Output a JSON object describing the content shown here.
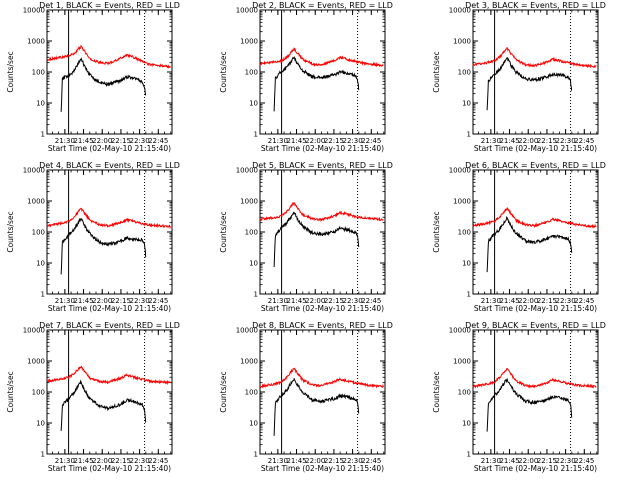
{
  "chart_data": [
    {
      "type": "line",
      "title": "Det 1, BLACK = Events, RED = LLD",
      "xlabel": "Start Time (02-May-10 21:15:40)",
      "ylabel": "Counts/sec",
      "xticks": [
        "21:30",
        "21:45",
        "22:00",
        "22:15",
        "22:30",
        "22:45"
      ],
      "yticks": [
        "1",
        "10",
        "100",
        "1000",
        "10000"
      ],
      "yscale": "log",
      "ylim": [
        1,
        10000
      ],
      "xlim": [
        "21:15:40",
        "22:56"
      ],
      "vlines": [
        "21:33",
        "22:34"
      ],
      "vlines_style": [
        "solid",
        "dotted"
      ],
      "series": [
        {
          "color": "#ff0000",
          "key": [
            "21:15:40",
            "21:27",
            "21:33",
            "21:38",
            "21:41",
            "21:43",
            "21:46",
            "21:50",
            "21:58",
            "22:05",
            "22:15",
            "22:20",
            "22:25",
            "22:32",
            "22:37",
            "22:45",
            "22:55"
          ],
          "values": [
            250,
            300,
            330,
            400,
            560,
            650,
            460,
            260,
            200,
            190,
            280,
            360,
            300,
            220,
            180,
            160,
            150
          ]
        },
        {
          "color": "#000000",
          "key": [
            "21:27",
            "21:28",
            "21:31",
            "21:33",
            "21:37",
            "21:41",
            "21:43",
            "21:46",
            "21:50",
            "21:58",
            "22:05",
            "22:15",
            "22:20",
            "22:25",
            "22:32",
            "22:34",
            "22:35"
          ],
          "values": [
            5,
            60,
            70,
            80,
            100,
            200,
            270,
            150,
            80,
            45,
            40,
            55,
            70,
            65,
            50,
            30,
            15
          ]
        }
      ]
    },
    {
      "type": "line",
      "title": "Det 2, BLACK = Events, RED = LLD",
      "xlabel": "Start Time (02-May-10 21:15:40)",
      "ylabel": "Counts/sec",
      "xticks": [
        "21:30",
        "21:45",
        "22:00",
        "22:15",
        "22:30",
        "22:45"
      ],
      "yticks": [
        "1",
        "10",
        "100",
        "1000",
        "10000"
      ],
      "yscale": "log",
      "ylim": [
        1,
        10000
      ],
      "xlim": [
        "21:15:40",
        "22:56"
      ],
      "vlines": [
        "21:33",
        "22:34"
      ],
      "vlines_style": [
        "solid",
        "dotted"
      ],
      "series": [
        {
          "color": "#ff0000",
          "key": [
            "21:15:40",
            "21:27",
            "21:33",
            "21:38",
            "21:41",
            "21:43",
            "21:46",
            "21:50",
            "21:58",
            "22:05",
            "22:15",
            "22:20",
            "22:25",
            "22:32",
            "22:37",
            "22:45",
            "22:55"
          ],
          "values": [
            180,
            210,
            230,
            320,
            450,
            550,
            400,
            260,
            180,
            170,
            230,
            300,
            260,
            220,
            200,
            180,
            160
          ]
        },
        {
          "color": "#000000",
          "key": [
            "21:27",
            "21:28",
            "21:31",
            "21:33",
            "21:37",
            "21:41",
            "21:43",
            "21:46",
            "21:50",
            "21:58",
            "22:05",
            "22:15",
            "22:20",
            "22:25",
            "22:32",
            "22:34",
            "22:35"
          ],
          "values": [
            6,
            60,
            90,
            100,
            140,
            230,
            300,
            180,
            110,
            70,
            65,
            80,
            100,
            90,
            80,
            60,
            25
          ]
        }
      ]
    },
    {
      "type": "line",
      "title": "Det 3, BLACK = Events, RED = LLD",
      "xlabel": "Start Time (02-May-10 21:15:40)",
      "ylabel": "Counts/sec",
      "xticks": [
        "21:30",
        "21:45",
        "22:00",
        "22:15",
        "22:30",
        "22:45"
      ],
      "yticks": [
        "1",
        "10",
        "100",
        "1000",
        "10000"
      ],
      "yscale": "log",
      "ylim": [
        1,
        10000
      ],
      "xlim": [
        "21:15:40",
        "22:56"
      ],
      "vlines": [
        "21:33",
        "22:34"
      ],
      "vlines_style": [
        "solid",
        "dotted"
      ],
      "series": [
        {
          "color": "#ff0000",
          "key": [
            "21:15:40",
            "21:27",
            "21:33",
            "21:38",
            "21:41",
            "21:43",
            "21:46",
            "21:50",
            "21:58",
            "22:05",
            "22:15",
            "22:20",
            "22:25",
            "22:32",
            "22:37",
            "22:45",
            "22:55"
          ],
          "values": [
            170,
            200,
            230,
            330,
            470,
            580,
            400,
            250,
            170,
            160,
            210,
            260,
            230,
            200,
            180,
            160,
            150
          ]
        },
        {
          "color": "#000000",
          "key": [
            "21:27",
            "21:28",
            "21:31",
            "21:33",
            "21:37",
            "21:41",
            "21:43",
            "21:46",
            "21:50",
            "21:58",
            "22:05",
            "22:15",
            "22:20",
            "22:25",
            "22:32",
            "22:34",
            "22:35"
          ],
          "values": [
            6,
            50,
            70,
            85,
            120,
            220,
            290,
            170,
            100,
            60,
            55,
            70,
            85,
            80,
            70,
            50,
            22
          ]
        }
      ]
    },
    {
      "type": "line",
      "title": "Det 4, BLACK = Events, RED = LLD",
      "xlabel": "Start Time (02-May-10 21:15:40)",
      "ylabel": "Counts/sec",
      "xticks": [
        "21:30",
        "21:45",
        "22:00",
        "22:15",
        "22:30",
        "22:45"
      ],
      "yticks": [
        "1",
        "10",
        "100",
        "1000",
        "10000"
      ],
      "yscale": "log",
      "ylim": [
        1,
        10000
      ],
      "xlim": [
        "21:15:40",
        "22:56"
      ],
      "vlines": [
        "21:33",
        "22:34"
      ],
      "vlines_style": [
        "solid",
        "dotted"
      ],
      "series": [
        {
          "color": "#ff0000",
          "key": [
            "21:15:40",
            "21:27",
            "21:33",
            "21:38",
            "21:41",
            "21:43",
            "21:46",
            "21:50",
            "21:58",
            "22:05",
            "22:15",
            "22:20",
            "22:25",
            "22:32",
            "22:37",
            "22:45",
            "22:55"
          ],
          "values": [
            160,
            190,
            220,
            320,
            460,
            560,
            400,
            240,
            170,
            160,
            200,
            250,
            220,
            190,
            170,
            160,
            150
          ]
        },
        {
          "color": "#000000",
          "key": [
            "21:27",
            "21:28",
            "21:31",
            "21:33",
            "21:37",
            "21:41",
            "21:43",
            "21:46",
            "21:50",
            "21:58",
            "22:05",
            "22:15",
            "22:20",
            "22:25",
            "22:32",
            "22:34",
            "22:35"
          ],
          "values": [
            4,
            45,
            65,
            80,
            110,
            210,
            270,
            150,
            90,
            45,
            40,
            50,
            65,
            60,
            55,
            40,
            15
          ]
        }
      ]
    },
    {
      "type": "line",
      "title": "Det 5, BLACK = Events, RED = LLD",
      "xlabel": "Start Time (02-May-10 21:15:40)",
      "ylabel": "Counts/sec",
      "xticks": [
        "21:30",
        "21:45",
        "22:00",
        "22:15",
        "22:30",
        "22:45"
      ],
      "yticks": [
        "1",
        "10",
        "100",
        "1000",
        "10000"
      ],
      "yscale": "log",
      "ylim": [
        1,
        10000
      ],
      "xlim": [
        "21:15:40",
        "22:56"
      ],
      "vlines": [
        "21:33",
        "22:34"
      ],
      "vlines_style": [
        "solid",
        "dotted"
      ],
      "series": [
        {
          "color": "#ff0000",
          "key": [
            "21:15:40",
            "21:27",
            "21:33",
            "21:38",
            "21:41",
            "21:43",
            "21:46",
            "21:50",
            "21:58",
            "22:05",
            "22:15",
            "22:20",
            "22:25",
            "22:32",
            "22:37",
            "22:45",
            "22:55"
          ],
          "values": [
            260,
            290,
            330,
            480,
            700,
            850,
            560,
            360,
            260,
            250,
            320,
            420,
            380,
            320,
            290,
            270,
            250
          ]
        },
        {
          "color": "#000000",
          "key": [
            "21:27",
            "21:28",
            "21:31",
            "21:33",
            "21:37",
            "21:41",
            "21:43",
            "21:46",
            "21:50",
            "21:58",
            "22:05",
            "22:15",
            "22:20",
            "22:25",
            "22:32",
            "22:34",
            "22:35"
          ],
          "values": [
            8,
            80,
            110,
            140,
            190,
            330,
            430,
            250,
            150,
            90,
            85,
            100,
            130,
            120,
            100,
            80,
            30
          ]
        }
      ]
    },
    {
      "type": "line",
      "title": "Det 6, BLACK = Events, RED = LLD",
      "xlabel": "Start Time (02-May-10 21:15:40)",
      "ylabel": "Counts/sec",
      "xticks": [
        "21:30",
        "21:45",
        "22:00",
        "22:15",
        "22:30",
        "22:45"
      ],
      "yticks": [
        "1",
        "10",
        "100",
        "1000",
        "10000"
      ],
      "yscale": "log",
      "ylim": [
        1,
        10000
      ],
      "xlim": [
        "21:15:40",
        "22:56"
      ],
      "vlines": [
        "21:33",
        "22:34"
      ],
      "vlines_style": [
        "solid",
        "dotted"
      ],
      "series": [
        {
          "color": "#ff0000",
          "key": [
            "21:15:40",
            "21:27",
            "21:33",
            "21:38",
            "21:41",
            "21:43",
            "21:46",
            "21:50",
            "21:58",
            "22:05",
            "22:15",
            "22:20",
            "22:25",
            "22:32",
            "22:37",
            "22:45",
            "22:55"
          ],
          "values": [
            160,
            190,
            220,
            330,
            480,
            580,
            400,
            240,
            170,
            160,
            210,
            260,
            230,
            200,
            180,
            160,
            150
          ]
        },
        {
          "color": "#000000",
          "key": [
            "21:27",
            "21:28",
            "21:31",
            "21:33",
            "21:37",
            "21:41",
            "21:43",
            "21:46",
            "21:50",
            "21:58",
            "22:05",
            "22:15",
            "22:20",
            "22:25",
            "22:32",
            "22:34",
            "22:35"
          ],
          "values": [
            5,
            50,
            70,
            85,
            120,
            220,
            290,
            160,
            95,
            50,
            45,
            60,
            75,
            70,
            60,
            45,
            18
          ]
        }
      ]
    },
    {
      "type": "line",
      "title": "Det 7, BLACK = Events, RED = LLD",
      "xlabel": "Start Time (02-May-10 21:15:40)",
      "ylabel": "Counts/sec",
      "xticks": [
        "21:30",
        "21:45",
        "22:00",
        "22:15",
        "22:30",
        "22:45"
      ],
      "yticks": [
        "1",
        "10",
        "100",
        "1000",
        "10000"
      ],
      "yscale": "log",
      "ylim": [
        1,
        10000
      ],
      "xlim": [
        "21:15:40",
        "22:56"
      ],
      "vlines": [
        "21:33",
        "22:34"
      ],
      "vlines_style": [
        "solid",
        "dotted"
      ],
      "series": [
        {
          "color": "#ff0000",
          "key": [
            "21:15:40",
            "21:27",
            "21:33",
            "21:38",
            "21:41",
            "21:43",
            "21:46",
            "21:50",
            "21:58",
            "22:05",
            "22:15",
            "22:20",
            "22:25",
            "22:32",
            "22:37",
            "22:45",
            "22:55"
          ],
          "values": [
            220,
            260,
            300,
            420,
            560,
            650,
            450,
            280,
            220,
            210,
            280,
            350,
            300,
            260,
            230,
            210,
            200
          ]
        },
        {
          "color": "#000000",
          "key": [
            "21:27",
            "21:28",
            "21:31",
            "21:33",
            "21:37",
            "21:41",
            "21:43",
            "21:46",
            "21:50",
            "21:58",
            "22:05",
            "22:15",
            "22:20",
            "22:25",
            "22:32",
            "22:34",
            "22:35"
          ],
          "values": [
            5,
            40,
            50,
            60,
            90,
            170,
            210,
            110,
            60,
            35,
            30,
            40,
            55,
            50,
            40,
            25,
            10
          ]
        }
      ]
    },
    {
      "type": "line",
      "title": "Det 8, BLACK = Events, RED = LLD",
      "xlabel": "Start Time (02-May-10 21:15:40)",
      "ylabel": "Counts/sec",
      "xticks": [
        "21:30",
        "21:45",
        "22:00",
        "22:15",
        "22:30",
        "22:45"
      ],
      "yticks": [
        "1",
        "10",
        "100",
        "1000",
        "10000"
      ],
      "yscale": "log",
      "ylim": [
        1,
        10000
      ],
      "xlim": [
        "21:15:40",
        "22:56"
      ],
      "vlines": [
        "21:33",
        "22:34"
      ],
      "vlines_style": [
        "solid",
        "dotted"
      ],
      "series": [
        {
          "color": "#ff0000",
          "key": [
            "21:15:40",
            "21:27",
            "21:33",
            "21:38",
            "21:41",
            "21:43",
            "21:46",
            "21:50",
            "21:58",
            "22:05",
            "22:15",
            "22:20",
            "22:25",
            "22:32",
            "22:37",
            "22:45",
            "22:55"
          ],
          "values": [
            150,
            180,
            210,
            320,
            470,
            570,
            400,
            240,
            170,
            160,
            210,
            260,
            230,
            200,
            180,
            160,
            150
          ]
        },
        {
          "color": "#000000",
          "key": [
            "21:27",
            "21:28",
            "21:31",
            "21:33",
            "21:37",
            "21:41",
            "21:43",
            "21:46",
            "21:50",
            "21:58",
            "22:05",
            "22:15",
            "22:20",
            "22:25",
            "22:32",
            "22:34",
            "22:35"
          ],
          "values": [
            4,
            45,
            65,
            80,
            110,
            210,
            280,
            160,
            95,
            55,
            50,
            60,
            75,
            70,
            60,
            45,
            18
          ]
        }
      ]
    },
    {
      "type": "line",
      "title": "Det 9, BLACK = Events, RED = LLD",
      "xlabel": "Start Time (02-May-10 21:15:40)",
      "ylabel": "Counts/sec",
      "xticks": [
        "21:30",
        "21:45",
        "22:00",
        "22:15",
        "22:30",
        "22:45"
      ],
      "yticks": [
        "1",
        "10",
        "100",
        "1000",
        "10000"
      ],
      "yscale": "log",
      "ylim": [
        1,
        10000
      ],
      "xlim": [
        "21:15:40",
        "22:56"
      ],
      "vlines": [
        "21:33",
        "22:34"
      ],
      "vlines_style": [
        "solid",
        "dotted"
      ],
      "series": [
        {
          "color": "#ff0000",
          "key": [
            "21:15:40",
            "21:27",
            "21:33",
            "21:38",
            "21:41",
            "21:43",
            "21:46",
            "21:50",
            "21:58",
            "22:05",
            "22:15",
            "22:20",
            "22:25",
            "22:32",
            "22:37",
            "22:45",
            "22:55"
          ],
          "values": [
            150,
            180,
            210,
            320,
            460,
            560,
            390,
            230,
            160,
            150,
            200,
            250,
            220,
            190,
            170,
            160,
            150
          ]
        },
        {
          "color": "#000000",
          "key": [
            "21:27",
            "21:28",
            "21:31",
            "21:33",
            "21:37",
            "21:41",
            "21:43",
            "21:46",
            "21:50",
            "21:58",
            "22:05",
            "22:15",
            "22:20",
            "22:25",
            "22:32",
            "22:34",
            "22:35"
          ],
          "values": [
            5,
            45,
            60,
            80,
            110,
            200,
            260,
            150,
            90,
            50,
            45,
            55,
            70,
            65,
            55,
            40,
            15
          ]
        }
      ]
    }
  ]
}
